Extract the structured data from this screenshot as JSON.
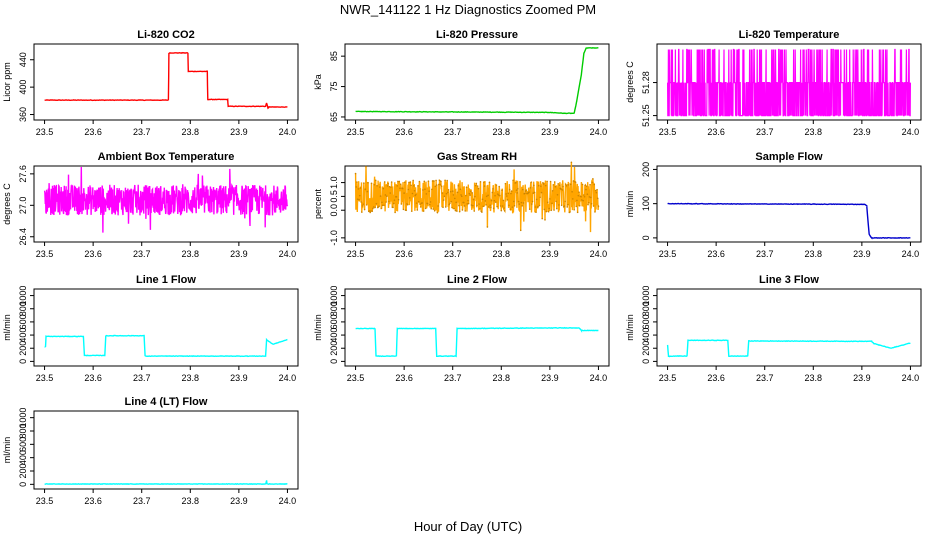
{
  "page": {
    "title": "NWR_141122  1 Hz Diagnostics Zoomed PM",
    "xlabel": "Hour of Day (UTC)"
  },
  "chart_data": [
    {
      "type": "line",
      "title": "Li-820 CO2",
      "ylabel": "Licor ppm",
      "color": "#ff0000",
      "xlim": [
        23.5,
        24.0
      ],
      "xticks": [
        "23.5",
        "23.6",
        "23.7",
        "23.8",
        "23.9",
        "24.0"
      ],
      "ylim": [
        352,
        463
      ],
      "yticks": [
        "360",
        "400",
        "440"
      ],
      "series": [
        {
          "x": [
            23.5,
            23.755,
            23.756,
            23.795,
            23.796,
            23.835,
            23.836,
            23.877,
            23.878,
            23.955,
            23.957,
            23.96,
            23.962,
            24.0
          ],
          "y": [
            381,
            381,
            450,
            450,
            423,
            423,
            382,
            382,
            372,
            372,
            377,
            369,
            371,
            371
          ]
        }
      ]
    },
    {
      "type": "line",
      "title": "Li-820 Pressure",
      "ylabel": "kPa",
      "color": "#00cc00",
      "xlim": [
        23.5,
        24.0
      ],
      "xticks": [
        "23.5",
        "23.6",
        "23.7",
        "23.8",
        "23.9",
        "24.0"
      ],
      "ylim": [
        64,
        89
      ],
      "yticks": [
        "65",
        "75",
        "85"
      ],
      "series": [
        {
          "x": [
            23.5,
            23.9,
            23.93,
            23.95,
            23.955,
            23.965,
            23.97,
            23.975,
            24.0
          ],
          "y": [
            66.8,
            66.5,
            66.2,
            66.2,
            70,
            79,
            86,
            87.7,
            87.7
          ]
        }
      ]
    },
    {
      "type": "line",
      "title": "Li-820 Temperature",
      "ylabel": "degrees C",
      "color": "#ff00ff",
      "xlim": [
        23.5,
        24.0
      ],
      "xticks": [
        "23.5",
        "23.6",
        "23.7",
        "23.8",
        "23.9",
        "24.0"
      ],
      "ylim": [
        51.246,
        51.315
      ],
      "yticks": [
        "51.25",
        "51.28"
      ],
      "levels": [
        51.25,
        51.28,
        51.31
      ],
      "series": [
        {
          "x_range": [
            23.5,
            24.0
          ]
        }
      ]
    },
    {
      "type": "line",
      "title": "Ambient Box Temperature",
      "ylabel": "degrees C",
      "color": "#ff00ff",
      "xlim": [
        23.5,
        24.0
      ],
      "xticks": [
        "23.5",
        "23.6",
        "23.7",
        "23.8",
        "23.9",
        "24.0"
      ],
      "ylim": [
        26.3,
        27.75
      ],
      "yticks": [
        "26.4",
        "27.0",
        "27.6"
      ],
      "series": [
        {
          "x_range": [
            23.5,
            24.0
          ],
          "mean": 27.1,
          "range": [
            26.4,
            27.7
          ]
        }
      ]
    },
    {
      "type": "line",
      "title": "Gas Stream RH",
      "ylabel": "percent",
      "color": "#ffa500",
      "xlim": [
        23.5,
        24.0
      ],
      "xticks": [
        "23.5",
        "23.6",
        "23.7",
        "23.8",
        "23.9",
        "24.0"
      ],
      "ylim": [
        -1.15,
        1.6
      ],
      "yticks": [
        "-1.0",
        "0.0",
        "0.5",
        "1.0"
      ],
      "series": [
        {
          "x_range": [
            23.5,
            24.0
          ],
          "mean": 0.5,
          "range": [
            -1.1,
            1.5
          ]
        }
      ]
    },
    {
      "type": "line",
      "title": "Sample Flow",
      "ylabel": "ml/min",
      "color": "#0000cc",
      "xlim": [
        23.5,
        24.0
      ],
      "xticks": [
        "23.5",
        "23.6",
        "23.7",
        "23.8",
        "23.9",
        "24.0"
      ],
      "ylim": [
        -12,
        210
      ],
      "yticks": [
        "0",
        "100",
        "200"
      ],
      "series": [
        {
          "x": [
            23.5,
            23.905,
            23.91,
            23.915,
            23.92,
            24.0
          ],
          "y": [
            100,
            98,
            95,
            10,
            0,
            0
          ]
        }
      ]
    },
    {
      "type": "line",
      "title": "Line 1 Flow",
      "ylabel": "ml/min",
      "color": "#00ffff",
      "xlim": [
        23.5,
        24.0
      ],
      "xticks": [
        "23.5",
        "23.6",
        "23.7",
        "23.8",
        "23.9",
        "24.0"
      ],
      "ylim": [
        -70,
        1100
      ],
      "yticks": [
        "0",
        "200",
        "400",
        "600",
        "800",
        "1000"
      ],
      "series": [
        {
          "x": [
            23.5,
            23.502,
            23.503,
            23.58,
            23.582,
            23.624,
            23.626,
            23.705,
            23.707,
            23.955,
            23.957,
            23.97,
            24.0
          ],
          "y": [
            220,
            220,
            380,
            380,
            90,
            90,
            390,
            390,
            80,
            80,
            330,
            260,
            330
          ]
        }
      ]
    },
    {
      "type": "line",
      "title": "Line 2 Flow",
      "ylabel": "ml/min",
      "color": "#00ffff",
      "xlim": [
        23.5,
        24.0
      ],
      "xticks": [
        "23.5",
        "23.6",
        "23.7",
        "23.8",
        "23.9",
        "24.0"
      ],
      "ylim": [
        -70,
        1100
      ],
      "yticks": [
        "0",
        "200",
        "400",
        "600",
        "800",
        "1000"
      ],
      "series": [
        {
          "x": [
            23.5,
            23.54,
            23.542,
            23.584,
            23.586,
            23.665,
            23.667,
            23.707,
            23.709,
            23.96,
            23.965,
            24.0
          ],
          "y": [
            500,
            500,
            80,
            80,
            500,
            500,
            80,
            80,
            500,
            510,
            470,
            470
          ]
        }
      ]
    },
    {
      "type": "line",
      "title": "Line 3 Flow",
      "ylabel": "ml/min",
      "color": "#00ffff",
      "xlim": [
        23.5,
        24.0
      ],
      "xticks": [
        "23.5",
        "23.6",
        "23.7",
        "23.8",
        "23.9",
        "24.0"
      ],
      "ylim": [
        -70,
        1100
      ],
      "yticks": [
        "0",
        "200",
        "400",
        "600",
        "800",
        "1000"
      ],
      "series": [
        {
          "x": [
            23.5,
            23.502,
            23.503,
            23.54,
            23.542,
            23.624,
            23.626,
            23.665,
            23.667,
            23.92,
            23.925,
            23.96,
            24.0
          ],
          "y": [
            250,
            80,
            80,
            80,
            320,
            320,
            80,
            80,
            310,
            305,
            270,
            200,
            280
          ]
        }
      ]
    },
    {
      "type": "line",
      "title": "Line 4 (LT) Flow",
      "ylabel": "ml/min",
      "color": "#00ffff",
      "xlim": [
        23.5,
        24.0
      ],
      "xticks": [
        "23.5",
        "23.6",
        "23.7",
        "23.8",
        "23.9",
        "24.0"
      ],
      "ylim": [
        -70,
        1100
      ],
      "yticks": [
        "0",
        "200",
        "400",
        "600",
        "800",
        "1000"
      ],
      "series": [
        {
          "x": [
            23.5,
            23.955,
            23.957,
            23.958,
            24.0
          ],
          "y": [
            5,
            5,
            60,
            5,
            5
          ]
        }
      ]
    }
  ]
}
